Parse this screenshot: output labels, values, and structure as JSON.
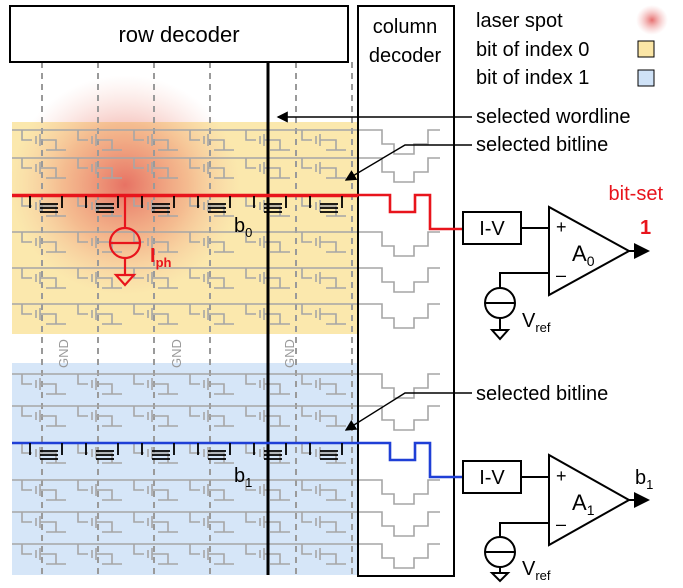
{
  "row_decoder": {
    "label": "row decoder"
  },
  "column_decoder": {
    "line1": "column",
    "line2": "decoder"
  },
  "legend": {
    "laser_spot": "laser spot",
    "bit_index0": "bit of index 0",
    "bit_index1": "bit of index 1",
    "color_laser": "#e04b4b",
    "color_index0": "#fbe6a6",
    "color_index1": "#cfe2f7"
  },
  "callouts": {
    "selected_wordline": "selected wordline",
    "selected_bitline_top": "selected bitline",
    "selected_bitline_bottom": "selected bitline"
  },
  "annotations": {
    "bit_set": "bit-set",
    "output_top_value": "1",
    "output_bottom": "b",
    "output_bottom_sub": "1"
  },
  "bit_labels": {
    "b": "b",
    "b0_sub": "0",
    "b1_sub": "1"
  },
  "photocurrent": {
    "I": "I",
    "sub": "ph"
  },
  "gnd": {
    "label": "GND"
  },
  "iv": {
    "label": "I-V"
  },
  "amps": {
    "plus": "+",
    "minus": "–",
    "a0": {
      "A": "A",
      "sub": "0"
    },
    "a1": {
      "A": "A",
      "sub": "1"
    }
  },
  "vref": {
    "V": "V",
    "sub": "ref"
  },
  "colors": {
    "red_line": "#e8141c",
    "blue_line": "#1f3fd6",
    "grey": "#9a9a9a"
  }
}
